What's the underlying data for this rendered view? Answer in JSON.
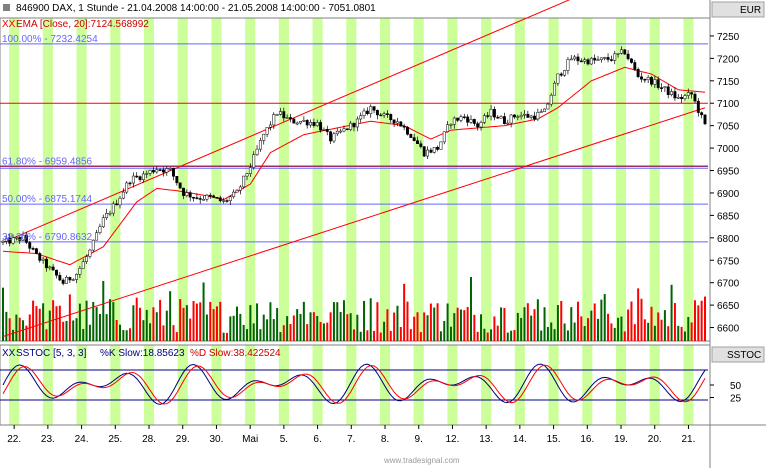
{
  "header": {
    "title": "846900  DAX, 1 Stunde - 21.04.2008 14:00:00 - 21.05.2008 14:00:00 - 7051.0801",
    "ema_label": "EMA [Close, 20]:7124.568992",
    "currency": "EUR"
  },
  "fib_labels": [
    {
      "text": "100.00% - 7232.4254",
      "value": 7232.4254
    },
    {
      "text": "61.80% - 6959.4856",
      "value": 6959.4856
    },
    {
      "text": "50.00% - 6875.1744",
      "value": 6875.1744
    },
    {
      "text": "38.20% - 6790.8632",
      "value": 6790.8632
    }
  ],
  "sub_panel": {
    "title_prefix": "SSTOC [5, 3, 3]",
    "k_label": "%K Slow:18.85623",
    "d_label": "%D Slow:38.422524",
    "panel_name": "SSTOC",
    "ticks": [
      {
        "label": "50",
        "value": 50
      },
      {
        "label": "25",
        "value": 25
      }
    ],
    "levels": [
      20,
      80
    ]
  },
  "footer": {
    "watermark": "www.tradesignal.com"
  },
  "colors": {
    "band": "#ccff99",
    "bull": "#006400",
    "bear": "#ff0000",
    "ema": "#ff0000",
    "fib": "#6666ff",
    "trend": "#ff0000",
    "k_line": "#000080",
    "d_line": "#ff0000",
    "magenta": "#993366"
  },
  "chart_data": {
    "type": "candlestick",
    "y_ticks": [
      6600,
      6650,
      6700,
      6750,
      6800,
      6850,
      6900,
      6950,
      7000,
      7050,
      7100,
      7150,
      7200,
      7250
    ],
    "ylim": [
      6570,
      7290
    ],
    "x_labels": [
      "22.",
      "23.",
      "24.",
      "25.",
      "28.",
      "29.",
      "30.",
      "Mai",
      "5.",
      "6.",
      "7.",
      "8.",
      "9.",
      "12.",
      "13.",
      "14.",
      "15.",
      "16.",
      "19.",
      "20.",
      "21."
    ],
    "horizontal_lines": [
      7232.4254,
      7100,
      6959.4856,
      6875.1744,
      6790.8632
    ],
    "price_path": [
      [
        0,
        6790
      ],
      [
        6,
        6800
      ],
      [
        10,
        6760
      ],
      [
        14,
        6730
      ],
      [
        18,
        6700
      ],
      [
        22,
        6720
      ],
      [
        26,
        6770
      ],
      [
        30,
        6840
      ],
      [
        34,
        6880
      ],
      [
        38,
        6930
      ],
      [
        42,
        6940
      ],
      [
        46,
        6955
      ],
      [
        50,
        6950
      ],
      [
        54,
        6900
      ],
      [
        58,
        6890
      ],
      [
        62,
        6890
      ],
      [
        66,
        6880
      ],
      [
        70,
        6900
      ],
      [
        74,
        6960
      ],
      [
        78,
        7030
      ],
      [
        82,
        7080
      ],
      [
        86,
        7060
      ],
      [
        90,
        7060
      ],
      [
        94,
        7055
      ],
      [
        98,
        7020
      ],
      [
        102,
        7040
      ],
      [
        106,
        7060
      ],
      [
        110,
        7090
      ],
      [
        114,
        7070
      ],
      [
        118,
        7060
      ],
      [
        122,
        7030
      ],
      [
        126,
        6990
      ],
      [
        130,
        7000
      ],
      [
        134,
        7060
      ],
      [
        138,
        7070
      ],
      [
        142,
        7050
      ],
      [
        146,
        7080
      ],
      [
        150,
        7060
      ],
      [
        154,
        7075
      ],
      [
        158,
        7070
      ],
      [
        162,
        7080
      ],
      [
        166,
        7160
      ],
      [
        170,
        7200
      ],
      [
        174,
        7195
      ],
      [
        178,
        7195
      ],
      [
        182,
        7200
      ],
      [
        186,
        7215
      ],
      [
        190,
        7160
      ],
      [
        194,
        7150
      ],
      [
        198,
        7130
      ],
      [
        202,
        7110
      ],
      [
        206,
        7120
      ],
      [
        210,
        7050
      ]
    ],
    "ema": [
      [
        0,
        6770
      ],
      [
        10,
        6765
      ],
      [
        20,
        6740
      ],
      [
        30,
        6780
      ],
      [
        40,
        6880
      ],
      [
        46,
        6910
      ],
      [
        52,
        6905
      ],
      [
        60,
        6895
      ],
      [
        66,
        6885
      ],
      [
        74,
        6920
      ],
      [
        80,
        6990
      ],
      [
        90,
        7030
      ],
      [
        100,
        7045
      ],
      [
        110,
        7060
      ],
      [
        120,
        7050
      ],
      [
        128,
        7020
      ],
      [
        134,
        7040
      ],
      [
        150,
        7050
      ],
      [
        160,
        7065
      ],
      [
        166,
        7090
      ],
      [
        176,
        7150
      ],
      [
        186,
        7180
      ],
      [
        194,
        7165
      ],
      [
        202,
        7130
      ],
      [
        210,
        7124.568992
      ]
    ],
    "stoch_k": [],
    "stoch_d": []
  }
}
